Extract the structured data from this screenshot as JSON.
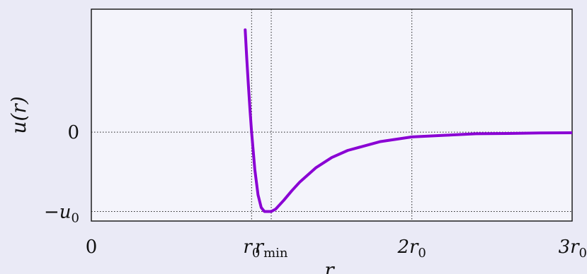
{
  "chart_data": {
    "type": "line",
    "title": "",
    "xlabel": "r",
    "ylabel": "u(r)",
    "xlim": [
      0,
      3
    ],
    "ylim": [
      -1.12,
      1.55
    ],
    "grid": "dotted at ticks",
    "x_ticks": [
      {
        "value": 0,
        "label": "0",
        "main": "0",
        "sub": ""
      },
      {
        "value": 1,
        "label": "r0",
        "main": "r",
        "sub": "0"
      },
      {
        "value": 1.1225,
        "label": "rmin",
        "main": "r",
        "sub": "min"
      },
      {
        "value": 2,
        "label": "2r0",
        "main": "2r",
        "sub": "0"
      },
      {
        "value": 3,
        "label": "3r0",
        "main": "3r",
        "sub": "0"
      }
    ],
    "y_ticks": [
      {
        "value": 0,
        "label": "0",
        "main": "0",
        "sub": ""
      },
      {
        "value": -1,
        "label": "−u0",
        "main": "−u",
        "sub": "0"
      }
    ],
    "series": [
      {
        "color": "#8a00d4",
        "description_function": "lennard-jones",
        "x": [
          0.96,
          0.97,
          0.98,
          0.99,
          1.0,
          1.02,
          1.04,
          1.06,
          1.08,
          1.1,
          1.1225,
          1.15,
          1.2,
          1.25,
          1.3,
          1.4,
          1.5,
          1.6,
          1.8,
          2.0,
          2.2,
          2.4,
          2.6,
          2.8,
          3.0
        ],
        "y": [
          1.29,
          0.92,
          0.59,
          0.28,
          0.0,
          -0.47,
          -0.79,
          -0.95,
          -1.0,
          -1.0,
          -1.0,
          -0.97,
          -0.86,
          -0.74,
          -0.63,
          -0.45,
          -0.32,
          -0.23,
          -0.12,
          -0.06,
          -0.04,
          -0.02,
          -0.016,
          -0.01,
          -0.007
        ]
      }
    ]
  }
}
